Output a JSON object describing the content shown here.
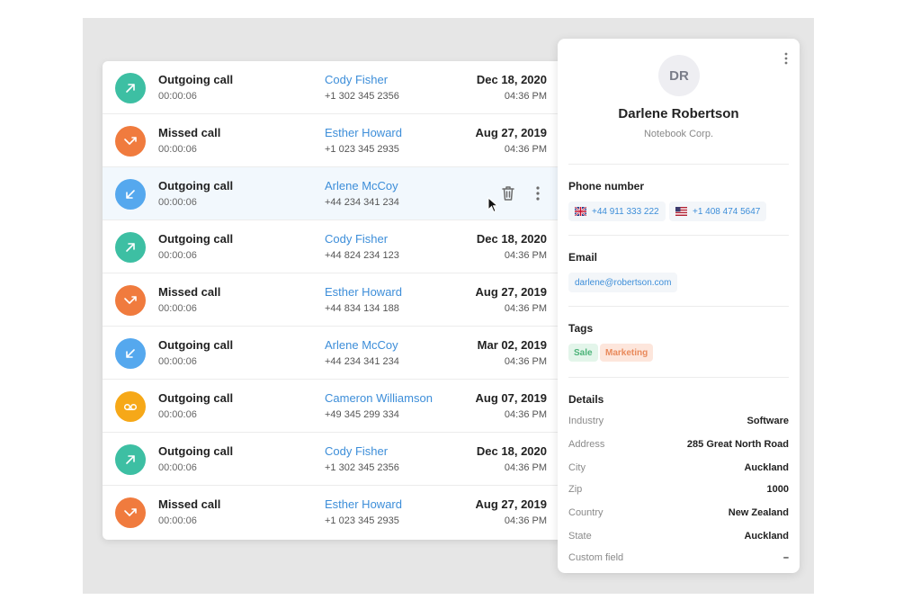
{
  "calls": [
    {
      "type": "Outgoing call",
      "duration": "00:00:06",
      "name": "Cody Fisher",
      "phone": "+1 302 345 2356",
      "date": "Dec 18, 2020",
      "time": "04:36 PM",
      "icon": "arrow-up-right-icon",
      "color": "#3dbfa3"
    },
    {
      "type": "Missed call",
      "duration": "00:00:06",
      "name": "Esther Howard",
      "phone": "+1 023 345 2935",
      "date": "Aug 27, 2019",
      "time": "04:36 PM",
      "icon": "missed-call-icon",
      "color": "#f07b3e"
    },
    {
      "type": "Outgoing call",
      "duration": "00:00:06",
      "name": "Arlene McCoy",
      "phone": "+44 234 341 234",
      "date": "",
      "time": "",
      "icon": "arrow-down-left-icon",
      "color": "#55a8ee"
    },
    {
      "type": "Outgoing call",
      "duration": "00:00:06",
      "name": "Cody Fisher",
      "phone": "+44 824 234 123",
      "date": "Dec 18, 2020",
      "time": "04:36 PM",
      "icon": "arrow-up-right-icon",
      "color": "#3dbfa3"
    },
    {
      "type": "Missed call",
      "duration": "00:00:06",
      "name": "Esther Howard",
      "phone": "+44 834 134 188",
      "date": "Aug 27, 2019",
      "time": "04:36 PM",
      "icon": "missed-call-icon",
      "color": "#f07b3e"
    },
    {
      "type": "Outgoing call",
      "duration": "00:00:06",
      "name": "Arlene McCoy",
      "phone": "+44 234 341 234",
      "date": "Mar 02, 2019",
      "time": "04:36 PM",
      "icon": "arrow-down-left-icon",
      "color": "#55a8ee"
    },
    {
      "type": "Outgoing call",
      "duration": "00:00:06",
      "name": "Cameron Williamson",
      "phone": "+49 345 299 334",
      "date": "Aug 07, 2019",
      "time": "04:36 PM",
      "icon": "voicemail-icon",
      "color": "#f6a818"
    },
    {
      "type": "Outgoing call",
      "duration": "00:00:06",
      "name": "Cody Fisher",
      "phone": "+1 302 345 2356",
      "date": "Dec 18, 2020",
      "time": "04:36 PM",
      "icon": "arrow-up-right-icon",
      "color": "#3dbfa3"
    },
    {
      "type": "Missed call",
      "duration": "00:00:06",
      "name": "Esther Howard",
      "phone": "+1 023 345 2935",
      "date": "Aug 27, 2019",
      "time": "04:36 PM",
      "icon": "missed-call-icon",
      "color": "#f07b3e"
    }
  ],
  "contact": {
    "initials": "DR",
    "name": "Darlene Robertson",
    "company": "Notebook Corp.",
    "phone_title": "Phone number",
    "phones": [
      "+44 911 333 222",
      "+1 408 474 5647"
    ],
    "email_title": "Email",
    "email": "darlene@robertson.com",
    "tags_title": "Tags",
    "tags": [
      "Sale",
      "Marketing"
    ],
    "details_title": "Details",
    "details": [
      {
        "label": "Industry",
        "value": "Software"
      },
      {
        "label": "Address",
        "value": "285 Great North Road"
      },
      {
        "label": "City",
        "value": "Auckland"
      },
      {
        "label": "Zip",
        "value": "1000"
      },
      {
        "label": "Country",
        "value": "New Zealand"
      },
      {
        "label": "State",
        "value": "Auckland"
      },
      {
        "label": "Custom field",
        "value": "–"
      }
    ]
  }
}
